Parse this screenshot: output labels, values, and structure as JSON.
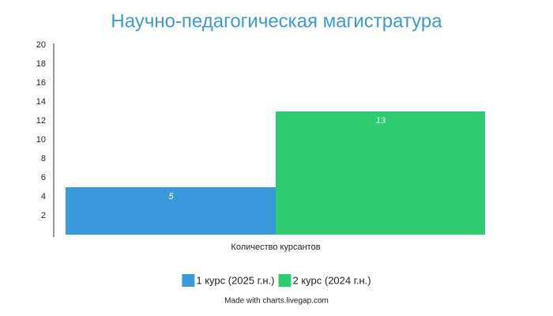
{
  "chart_data": {
    "type": "bar",
    "title": "Научно-педагогическая магистратура",
    "categories": [
      "Количество курсантов"
    ],
    "series": [
      {
        "name": "1 курс (2025 г.н.)",
        "color": "#3a99d8",
        "values": [
          5
        ]
      },
      {
        "name": "2 курс (2024 г.н.)",
        "color": "#2ecc71",
        "values": [
          13
        ]
      }
    ],
    "ylim": [
      0,
      20
    ],
    "yticks": [
      2,
      4,
      6,
      8,
      10,
      12,
      14,
      16,
      18,
      20
    ],
    "grid": false,
    "legend": "bottom",
    "footer": "Made with charts.livegap.com"
  }
}
